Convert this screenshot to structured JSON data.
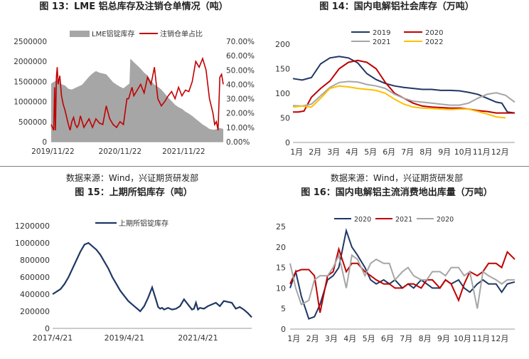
{
  "sources": {
    "left": "数据来源：Wind，兴证期货研发部",
    "right": "数据来源：Wind，兴证期货研发部"
  },
  "chart_data": [
    {
      "id": "fig13",
      "title": "图 13：LME 铝总库存及注销仓单情况（吨）",
      "type": "area",
      "series": [
        {
          "name": "LME铝锭库存",
          "kind": "area",
          "axis": "left",
          "color": "#a6a6a6",
          "x": [
            0.0,
            0.02,
            0.04,
            0.06,
            0.08,
            0.1,
            0.12,
            0.14,
            0.16,
            0.18,
            0.2,
            0.22,
            0.24,
            0.26,
            0.28,
            0.3,
            0.32,
            0.34,
            0.36,
            0.38,
            0.4,
            0.42,
            0.44,
            0.455,
            0.46,
            0.48,
            0.5,
            0.52,
            0.54,
            0.56,
            0.58,
            0.6,
            0.62,
            0.64,
            0.66,
            0.68,
            0.7,
            0.72,
            0.74,
            0.76,
            0.78,
            0.8,
            0.82,
            0.84,
            0.86,
            0.88,
            0.9,
            0.92,
            0.94,
            0.96,
            0.98,
            1.0
          ],
          "y": [
            1450000,
            1500000,
            1560000,
            1430000,
            1400000,
            1320000,
            1300000,
            1340000,
            1380000,
            1420000,
            1520000,
            1620000,
            1700000,
            1760000,
            1720000,
            1700000,
            1680000,
            1580000,
            1480000,
            1420000,
            1370000,
            1330000,
            1400000,
            1450000,
            2070000,
            1980000,
            1900000,
            1820000,
            1720000,
            1650000,
            1520000,
            1420000,
            1370000,
            1300000,
            1200000,
            1100000,
            1010000,
            920000,
            860000,
            820000,
            750000,
            700000,
            640000,
            570000,
            500000,
            430000,
            380000,
            320000,
            300000,
            310000,
            340000,
            320000
          ]
        },
        {
          "name": "注销仓单占比",
          "kind": "line",
          "axis": "right",
          "color": "#c00000",
          "x": [
            0.0,
            0.015,
            0.02,
            0.025,
            0.03,
            0.035,
            0.04,
            0.05,
            0.06,
            0.07,
            0.08,
            0.09,
            0.1,
            0.11,
            0.12,
            0.13,
            0.14,
            0.15,
            0.16,
            0.17,
            0.18,
            0.19,
            0.2,
            0.22,
            0.24,
            0.26,
            0.28,
            0.3,
            0.32,
            0.34,
            0.36,
            0.38,
            0.4,
            0.42,
            0.44,
            0.45,
            0.46,
            0.47,
            0.48,
            0.5,
            0.52,
            0.54,
            0.56,
            0.58,
            0.6,
            0.62,
            0.64,
            0.66,
            0.68,
            0.7,
            0.72,
            0.74,
            0.76,
            0.78,
            0.8,
            0.82,
            0.84,
            0.86,
            0.88,
            0.9,
            0.92,
            0.94,
            0.95,
            0.96,
            0.97,
            0.98,
            0.99,
            1.0
          ],
          "y": [
            0.12,
            0.08,
            0.38,
            0.08,
            0.45,
            0.52,
            0.4,
            0.46,
            0.32,
            0.26,
            0.22,
            0.17,
            0.12,
            0.08,
            0.14,
            0.17,
            0.12,
            0.1,
            0.12,
            0.18,
            0.14,
            0.1,
            0.12,
            0.16,
            0.1,
            0.16,
            0.13,
            0.12,
            0.25,
            0.16,
            0.12,
            0.1,
            0.14,
            0.12,
            0.3,
            0.3,
            0.34,
            0.38,
            0.32,
            0.36,
            0.4,
            0.34,
            0.45,
            0.4,
            0.52,
            0.3,
            0.25,
            0.28,
            0.32,
            0.35,
            0.3,
            0.38,
            0.32,
            0.36,
            0.35,
            0.42,
            0.56,
            0.52,
            0.58,
            0.5,
            0.3,
            0.2,
            0.12,
            0.14,
            0.08,
            0.45,
            0.47,
            0.4
          ]
        }
      ],
      "x_ticks": [
        "2019/11/22",
        "2020/11/22",
        "2021/11/22"
      ],
      "y_ticks_left": [
        "0",
        "500000",
        "1000000",
        "1500000",
        "2000000",
        "2500000"
      ],
      "y_ticks_right": [
        "0.00%",
        "10.00%",
        "20.00%",
        "30.00%",
        "40.00%",
        "50.00%",
        "60.00%",
        "70.00%"
      ],
      "ylim_left": [
        0,
        2500000
      ],
      "ylim_right": [
        0,
        0.7
      ],
      "legend": "top"
    },
    {
      "id": "fig14",
      "title": "图 14：国内电解铝社会库存（万吨）",
      "type": "line",
      "categories": [
        "1月",
        "2月",
        "3月",
        "4月",
        "5月",
        "6月",
        "7月",
        "8月",
        "9月",
        "10月",
        "11月",
        "12月"
      ],
      "ylim": [
        0,
        200
      ],
      "y_ticks": [
        "0",
        "50",
        "100",
        "150",
        "200"
      ],
      "legend": "top",
      "series": [
        {
          "name": "2019",
          "color": "#1f3864",
          "x": [
            0,
            0.5,
            1,
            1.5,
            2,
            2.5,
            3,
            3.5,
            4,
            4.5,
            5,
            5.5,
            6,
            6.5,
            7,
            7.5,
            8,
            8.5,
            9,
            9.5,
            10,
            10.5,
            11,
            11.3,
            11.6,
            12
          ],
          "y": [
            130,
            127,
            132,
            160,
            172,
            175,
            172,
            162,
            140,
            128,
            120,
            115,
            112,
            110,
            108,
            108,
            106,
            106,
            105,
            102,
            98,
            90,
            82,
            80,
            62,
            60
          ]
        },
        {
          "name": "2020",
          "color": "#c00000",
          "x": [
            0,
            0.3,
            0.6,
            1,
            1.5,
            2,
            2.5,
            3,
            3.5,
            4,
            4.5,
            5,
            5.5,
            6,
            6.5,
            7,
            7.5,
            8,
            8.5,
            9,
            9.5,
            10,
            10.5,
            11,
            11.5,
            12
          ],
          "y": [
            62,
            62,
            64,
            92,
            110,
            125,
            150,
            163,
            167,
            163,
            150,
            122,
            100,
            90,
            80,
            74,
            72,
            71,
            70,
            70,
            68,
            65,
            63,
            60,
            60,
            60
          ]
        },
        {
          "name": "2021",
          "color": "#a6a6a6",
          "x": [
            0,
            0.5,
            1,
            1.5,
            2,
            2.5,
            3,
            3.5,
            4,
            4.5,
            5,
            5.5,
            6,
            6.5,
            7,
            7.5,
            8,
            8.5,
            9,
            9.5,
            10,
            10.5,
            11,
            11.5,
            12
          ],
          "y": [
            75,
            74,
            78,
            95,
            112,
            122,
            124,
            123,
            118,
            115,
            110,
            98,
            90,
            84,
            82,
            80,
            78,
            76,
            76,
            80,
            90,
            98,
            101,
            96,
            82
          ]
        },
        {
          "name": "2022",
          "color": "#ffc000",
          "x": [
            0,
            0.5,
            1,
            1.5,
            2,
            2.5,
            3,
            3.5,
            4,
            4.5,
            5,
            5.5,
            6,
            6.5,
            7,
            7.5,
            8,
            8.5,
            9,
            9.5,
            10,
            10.5,
            11,
            11.5
          ],
          "y": [
            72,
            74,
            72,
            90,
            110,
            115,
            113,
            110,
            108,
            106,
            100,
            88,
            78,
            72,
            70,
            69,
            68,
            67,
            68,
            68,
            63,
            58,
            52,
            50
          ]
        }
      ]
    },
    {
      "id": "fig15",
      "title": "图 15：上期所铝库存（吨）",
      "type": "line",
      "series": [
        {
          "name": "上期所铝锭库存",
          "color": "#1f3864",
          "x": [
            0.0,
            0.02,
            0.04,
            0.06,
            0.08,
            0.1,
            0.12,
            0.14,
            0.16,
            0.18,
            0.2,
            0.22,
            0.24,
            0.26,
            0.28,
            0.3,
            0.32,
            0.34,
            0.36,
            0.38,
            0.4,
            0.42,
            0.44,
            0.46,
            0.48,
            0.5,
            0.52,
            0.53,
            0.54,
            0.55,
            0.56,
            0.57,
            0.58,
            0.6,
            0.62,
            0.64,
            0.66,
            0.68,
            0.7,
            0.71,
            0.72,
            0.73,
            0.74,
            0.76,
            0.78,
            0.8,
            0.82,
            0.84,
            0.86,
            0.88,
            0.9,
            0.92,
            0.94,
            0.96,
            0.98,
            1.0
          ],
          "y": [
            400000,
            430000,
            460000,
            520000,
            600000,
            700000,
            800000,
            900000,
            980000,
            1000000,
            960000,
            920000,
            860000,
            780000,
            700000,
            600000,
            520000,
            440000,
            380000,
            320000,
            280000,
            240000,
            200000,
            260000,
            360000,
            480000,
            330000,
            250000,
            230000,
            240000,
            220000,
            230000,
            240000,
            220000,
            230000,
            260000,
            340000,
            280000,
            220000,
            230000,
            300000,
            220000,
            240000,
            230000,
            260000,
            280000,
            300000,
            260000,
            320000,
            310000,
            300000,
            230000,
            250000,
            220000,
            180000,
            130000
          ]
        }
      ],
      "x_ticks": [
        "2017/4/21",
        "2019/4/21",
        "2021/4/21"
      ],
      "y_ticks": [
        "0",
        "200000",
        "400000",
        "600000",
        "800000",
        "1000000",
        "1200000"
      ],
      "ylim": [
        0,
        1200000
      ],
      "legend": "top"
    },
    {
      "id": "fig16",
      "title": "图 16：国内电解铝主流消费地出库量（万吨）",
      "type": "line",
      "categories": [
        "1月",
        "2月",
        "3月",
        "4月",
        "5月",
        "6月",
        "7月",
        "8月",
        "9月",
        "10月",
        "11月",
        "12月"
      ],
      "ylim": [
        0,
        25
      ],
      "y_ticks": [
        "0",
        "5",
        "10",
        "15",
        "20",
        "25"
      ],
      "legend": "top",
      "series": [
        {
          "name": "2020",
          "color": "#1f3864",
          "x": [
            0,
            0.3,
            0.6,
            1,
            1.3,
            1.6,
            2,
            2.3,
            2.6,
            3,
            3.3,
            3.6,
            4,
            4.3,
            4.6,
            5,
            5.3,
            5.6,
            6,
            6.3,
            6.6,
            7,
            7.3,
            7.6,
            8,
            8.3,
            8.6,
            9,
            9.3,
            9.6,
            10,
            10.3,
            10.6,
            11,
            11.3,
            11.6,
            12
          ],
          "y": [
            10,
            14,
            8,
            2.5,
            3,
            6,
            12,
            13,
            15,
            24,
            20,
            18,
            15,
            12,
            11,
            12,
            11,
            12,
            10,
            11,
            10,
            12,
            11,
            10,
            10,
            12,
            11,
            12,
            10,
            9,
            11,
            12,
            11,
            11,
            9,
            11,
            11.5
          ]
        },
        {
          "name": "2021",
          "color": "#c00000",
          "x": [
            0,
            0.3,
            0.6,
            1,
            1.3,
            1.6,
            2,
            2.3,
            2.6,
            3,
            3.3,
            3.6,
            4,
            4.3,
            4.6,
            5,
            5.3,
            5.6,
            6,
            6.3,
            6.6,
            7,
            7.3,
            7.6,
            8,
            8.3,
            8.6,
            9,
            9.3,
            9.6,
            10,
            10.3,
            10.6,
            11,
            11.3,
            11.6,
            12
          ],
          "y": [
            11,
            14,
            14.5,
            14.5,
            13,
            4,
            13,
            14,
            19.5,
            14,
            16,
            16,
            14,
            13,
            12,
            11,
            11,
            10,
            10,
            11,
            11,
            10,
            12,
            12,
            10,
            12,
            11,
            7,
            11,
            14,
            13,
            14,
            16,
            16,
            15,
            18.8,
            17
          ]
        },
        {
          "name": "2020",
          "color": "#a6a6a6",
          "x": [
            0,
            0.3,
            0.6,
            1,
            1.3,
            1.6,
            2,
            2.3,
            2.6,
            3,
            3.3,
            3.6,
            4,
            4.3,
            4.6,
            5,
            5.3,
            5.6,
            6,
            6.3,
            6.6,
            7,
            7.3,
            7.6,
            8,
            8.3,
            8.6,
            9,
            9.3,
            9.6,
            10,
            10.3,
            10.6,
            11,
            11.3,
            11.6,
            12
          ],
          "y": [
            16,
            10,
            6,
            7,
            12,
            13,
            13,
            15,
            18,
            10,
            18,
            17,
            13,
            16,
            17,
            16,
            16,
            12,
            14,
            15,
            13,
            12,
            12,
            14,
            14,
            13,
            15,
            15,
            13,
            14,
            5,
            14,
            13,
            12,
            11,
            12,
            12
          ]
        }
      ]
    }
  ]
}
